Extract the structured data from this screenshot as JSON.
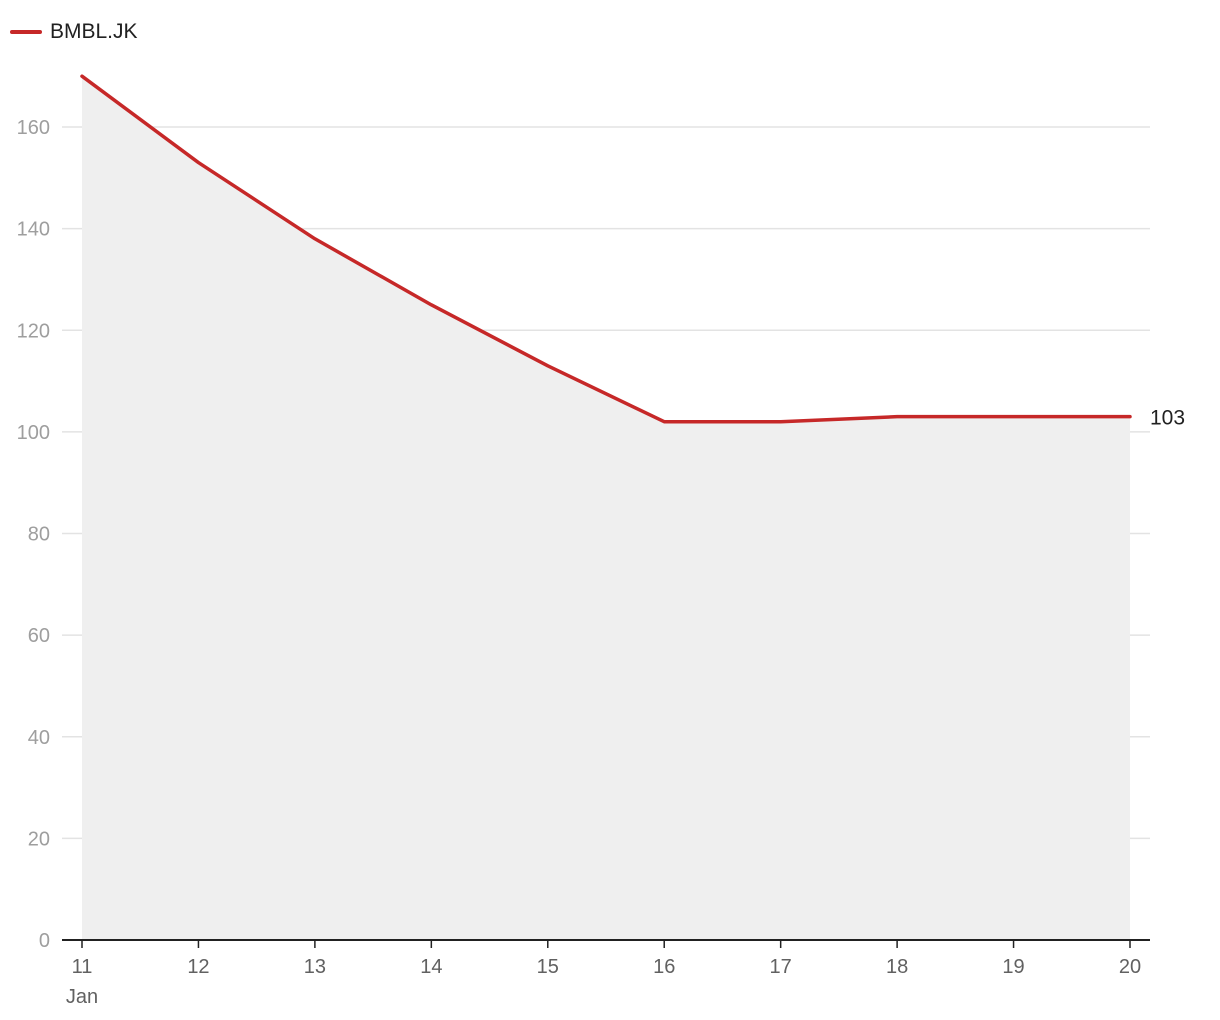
{
  "chart_data": {
    "type": "area",
    "title": "",
    "xlabel": "",
    "ylabel": "",
    "series": [
      {
        "name": "BMBL.JK",
        "color": "#c62828",
        "values": [
          170,
          153,
          138,
          125,
          113,
          102,
          102,
          103,
          103,
          103
        ]
      }
    ],
    "x": [
      "11",
      "12",
      "13",
      "14",
      "15",
      "16",
      "17",
      "18",
      "19",
      "20"
    ],
    "x_sublabel": "Jan",
    "ylim": [
      0,
      170
    ],
    "yticks": [
      0,
      20,
      40,
      60,
      80,
      100,
      120,
      140,
      160
    ],
    "grid": true,
    "legend": "top-left",
    "last_value_label": "103",
    "fill_color": "#efefef",
    "line_color": "#c62828"
  }
}
